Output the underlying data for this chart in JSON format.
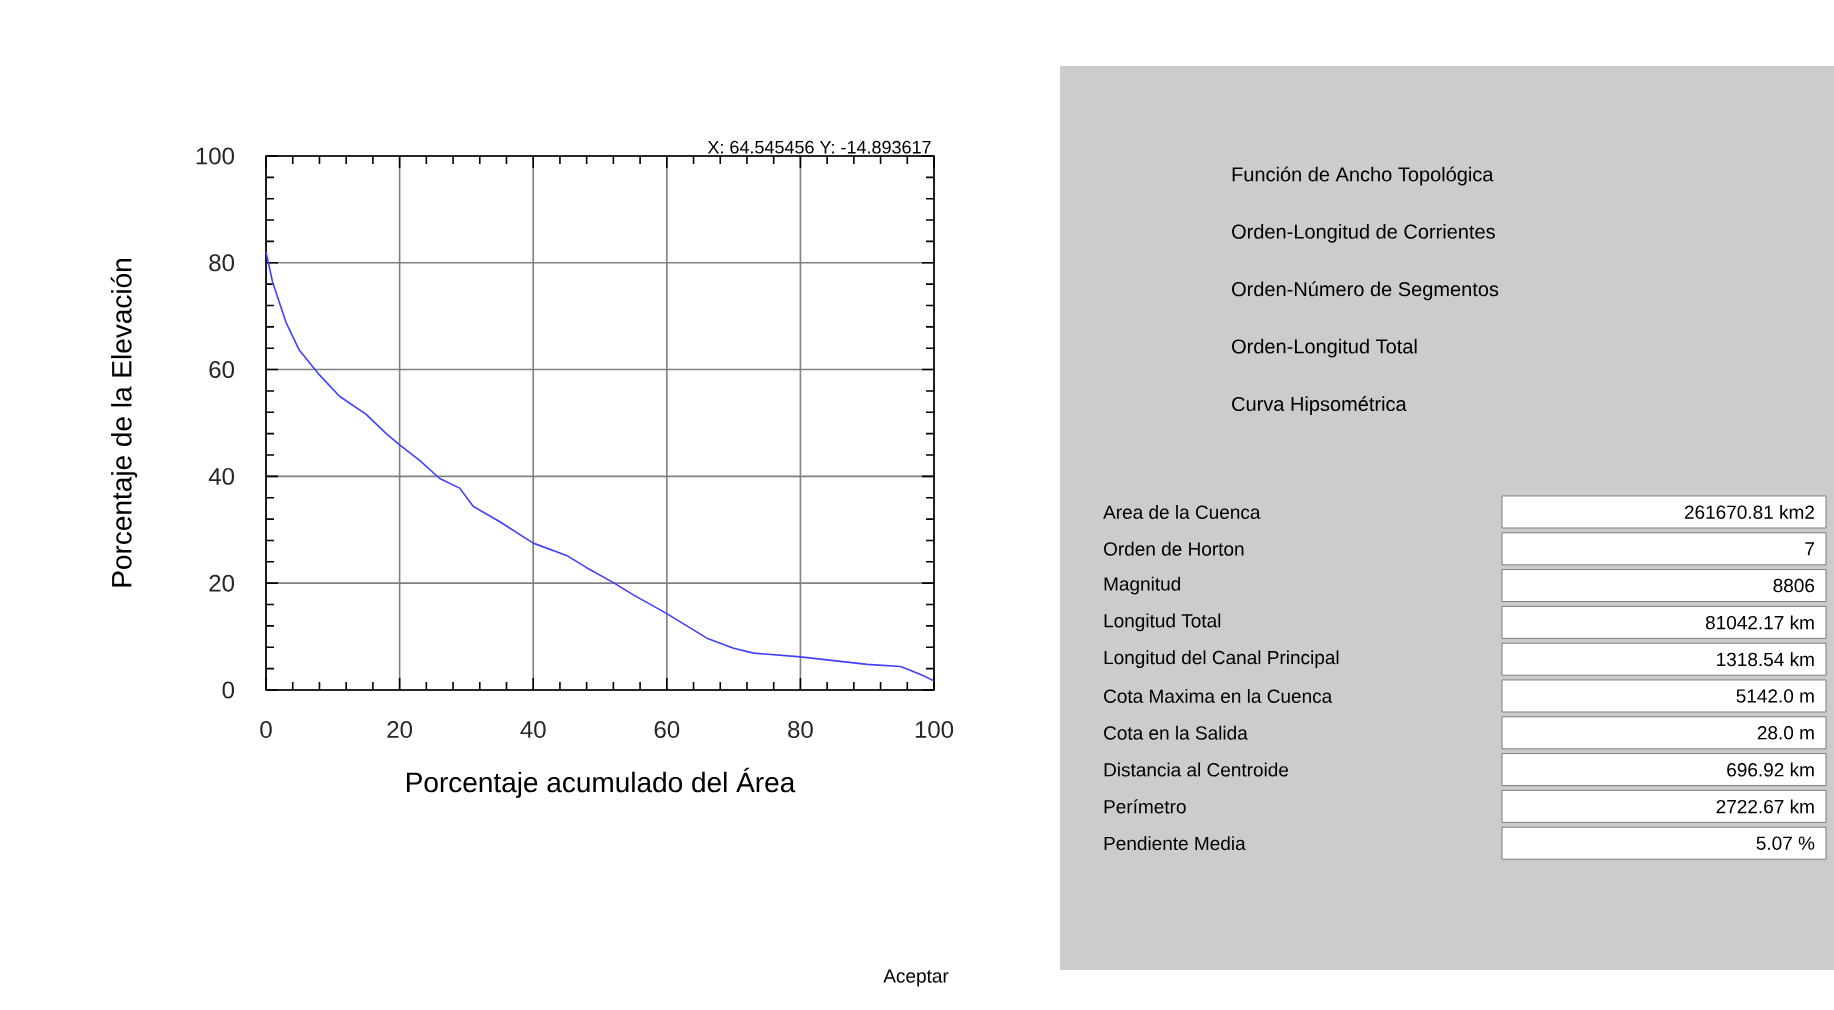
{
  "chart_data": [
    {
      "type": "line",
      "xlabel": "Porcentaje acumulado del Área",
      "ylabel": "Porcentaje de la Elevación",
      "annotations": [
        "X: 64.545456   Y: -14.893617"
      ],
      "xlim": [
        0,
        100
      ],
      "ylim": [
        0,
        100
      ],
      "xticks": [
        0,
        20,
        40,
        60,
        80,
        100
      ],
      "yticks": [
        0,
        20,
        40,
        60,
        80,
        100
      ],
      "grid": true,
      "series": [
        {
          "color": "#4040ff",
          "x": [
            0,
            1,
            3,
            5,
            8,
            11,
            15,
            18,
            20,
            23,
            26,
            29,
            31,
            35,
            40,
            45,
            48,
            52,
            55,
            60,
            63,
            66,
            70,
            73,
            80,
            85,
            90,
            95,
            98,
            100
          ],
          "values": [
            82,
            76.3,
            68.8,
            63.6,
            59,
            55,
            51.6,
            48,
            45.9,
            43,
            39.6,
            37.8,
            34.4,
            31.5,
            27.5,
            25.2,
            22.9,
            20.1,
            17.8,
            14.3,
            12,
            9.7,
            7.8,
            6.9,
            6.2,
            5.5,
            4.8,
            4.4,
            2.9,
            1.7
          ]
        }
      ]
    },
    {
      "type": "other",
      "annotations": [
        "Función de Ancho Topológica",
        "Orden-Longitud de Corrientes",
        "Orden-Número de Segmentos",
        "Orden-Longitud Total",
        "Curva Hipsométrica",
        "Area de la Cuenca",
        "261670.81 km2",
        "Orden de Horton",
        "7",
        "Magnitud",
        "8806",
        "Longitud Total",
        "81042.17 km",
        "Longitud del Canal Principal",
        "1318.54 km",
        "Cota Maxima en la Cuenca",
        "5142.0 m",
        "Cota en la Salida",
        "28.0 m",
        "Distancia al Centroide",
        "696.92 km",
        "Perímetro",
        "2722.67  km",
        "Pendiente Media",
        "5.07 %",
        "Aceptar"
      ]
    }
  ]
}
